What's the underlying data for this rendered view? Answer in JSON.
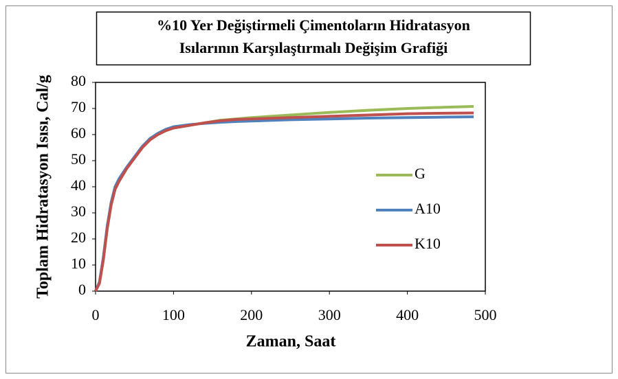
{
  "chart_data": {
    "type": "line",
    "title": [
      "%10 Yer Değiştirmeli Çimentoların Hidratasyon",
      "Isılarının Karşılaştırmalı Değişim Grafiği"
    ],
    "x_label": "Zaman, Saat",
    "y_label": "Toplam Hidratasyon Isısı, Cal/g",
    "x": [
      0,
      5,
      10,
      15,
      20,
      25,
      30,
      40,
      50,
      60,
      70,
      80,
      90,
      100,
      120,
      140,
      160,
      180,
      200,
      250,
      300,
      350,
      400,
      450,
      485
    ],
    "series": [
      {
        "name": "G",
        "color": "#9bbb59",
        "values": [
          0,
          3,
          12,
          24,
          33,
          39,
          42,
          47,
          51,
          55,
          58,
          60,
          61.5,
          62.5,
          63.5,
          64.5,
          65.5,
          66,
          66.5,
          67.5,
          68.5,
          69.3,
          70,
          70.5,
          70.8
        ]
      },
      {
        "name": "A10",
        "color": "#4f81bd",
        "values": [
          0,
          3.5,
          13,
          25,
          34,
          40,
          43,
          47.5,
          51.5,
          55.5,
          58.5,
          60.5,
          62,
          63,
          63.8,
          64.3,
          64.7,
          65,
          65.2,
          65.7,
          66,
          66.3,
          66.5,
          66.7,
          66.8
        ]
      },
      {
        "name": "K10",
        "color": "#c0504d",
        "values": [
          0,
          3,
          12,
          24,
          33,
          39,
          42,
          47,
          51,
          55,
          58,
          60,
          61.5,
          62.5,
          63.5,
          64.5,
          65.3,
          65.8,
          66,
          66.5,
          67,
          67.5,
          68,
          68.2,
          68.3
        ]
      }
    ],
    "xlim": [
      0,
      500
    ],
    "xticks": [
      0,
      100,
      200,
      300,
      400,
      500
    ],
    "ylim": [
      0,
      80
    ],
    "yticks": [
      0,
      10,
      20,
      30,
      40,
      50,
      60,
      70,
      80
    ],
    "legend": "right",
    "grid": false
  }
}
